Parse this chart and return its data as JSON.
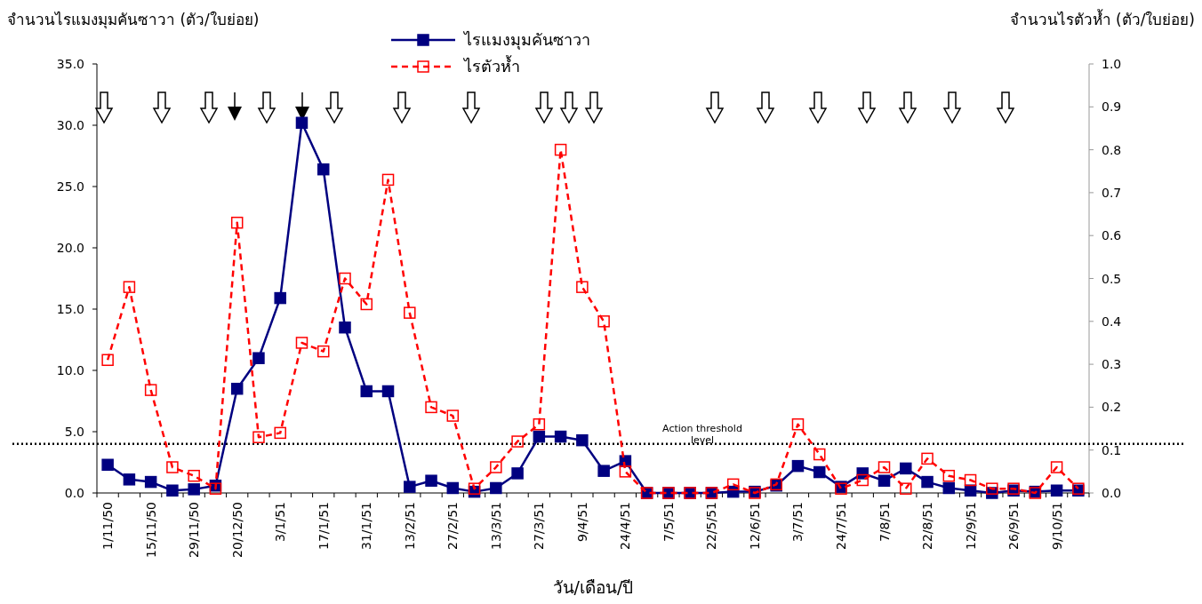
{
  "chart_data": {
    "type": "line",
    "xlabel": "วัน/เดือน/ปี",
    "ylabel": "จำนวนไรแมงมุมคันซาวา (ตัว/ใบย่อย)",
    "y2label": "จำนวนไรตัวห้ำ (ตัว/ใบย่อย)",
    "categories": [
      "1/11/50",
      null,
      "15/11/50",
      null,
      "29/11/50",
      null,
      "20/12/50",
      null,
      "3/1/51",
      null,
      "17/1/51",
      null,
      "31/1/51",
      null,
      "13/2/51",
      null,
      "27/2/51",
      null,
      "13/3/51",
      null,
      "27/3/51",
      null,
      "9/4/51",
      null,
      "24/4/51",
      null,
      "7/5/51",
      null,
      "22/5/51",
      null,
      "12/6/51",
      null,
      "3/7/51",
      null,
      "24/7/51",
      null,
      "7/8/51",
      null,
      "22/8/51",
      null,
      "12/9/51",
      null,
      "26/9/51",
      null,
      "9/10/51",
      null
    ],
    "series": [
      {
        "name": "ไรแมงมุมคันซาวา",
        "color": "#000080",
        "marker": "square",
        "line_style": "solid",
        "values": [
          2.3,
          1.1,
          0.9,
          0.2,
          0.3,
          0.6,
          8.5,
          11.0,
          15.9,
          30.2,
          26.4,
          13.5,
          8.3,
          8.3,
          0.5,
          1.0,
          0.4,
          0.1,
          0.4,
          1.6,
          4.6,
          4.6,
          4.3,
          1.8,
          2.6,
          0.0,
          0.0,
          0.0,
          0.0,
          0.1,
          0.1,
          0.6,
          2.2,
          1.7,
          0.5,
          1.6,
          1.0,
          2.0,
          0.9,
          0.4,
          0.2,
          0.0,
          0.2,
          0.1,
          0.2,
          0.2
        ]
      },
      {
        "name": "ไรตัวห้ำ",
        "color": "#ff0000",
        "marker": "square",
        "line_style": "dashed",
        "axis": "y2",
        "values": [
          0.31,
          0.48,
          0.24,
          0.06,
          0.04,
          0.01,
          0.63,
          0.13,
          0.14,
          0.35,
          0.33,
          0.5,
          0.44,
          0.73,
          0.42,
          0.2,
          0.18,
          0.01,
          0.06,
          0.12,
          0.16,
          0.8,
          0.48,
          0.4,
          0.05,
          0.0,
          0.0,
          0.0,
          0.0,
          0.02,
          0.0,
          0.02,
          0.16,
          0.09,
          0.01,
          0.03,
          0.06,
          0.01,
          0.08,
          0.04,
          0.03,
          0.01,
          0.01,
          0.0,
          0.06,
          0.01
        ]
      }
    ],
    "ylim": [
      0,
      35
    ],
    "yticks": [
      {
        "value": 0,
        "label": "0.0"
      },
      {
        "value": 5,
        "label": "5.0"
      },
      {
        "value": 10,
        "label": "10.0"
      },
      {
        "value": 15,
        "label": "15.0"
      },
      {
        "value": 20,
        "label": "20.0"
      },
      {
        "value": 25,
        "label": "25.0"
      },
      {
        "value": 30,
        "label": "30.0"
      },
      {
        "value": 35,
        "label": "35.0"
      }
    ],
    "y2lim": [
      0,
      1
    ],
    "y2ticks": [
      {
        "value": 0,
        "label": "0.0"
      },
      {
        "value": 0.1,
        "label": "0.1"
      },
      {
        "value": 0.2,
        "label": "0.2"
      },
      {
        "value": 0.3,
        "label": "0.3"
      },
      {
        "value": 0.4,
        "label": "0.4"
      },
      {
        "value": 0.5,
        "label": "0.5"
      },
      {
        "value": 0.6,
        "label": "0.6"
      },
      {
        "value": 0.7,
        "label": "0.7"
      },
      {
        "value": 0.8,
        "label": "0.8"
      },
      {
        "value": 0.9,
        "label": "0.9"
      },
      {
        "value": 1,
        "label": "1.0"
      }
    ],
    "ref_lines": [
      {
        "axis": "y",
        "value": 4,
        "label": "Action threshold level",
        "color": "#000000",
        "line_style": "dotted"
      }
    ],
    "legend": "top",
    "grid": false
  }
}
